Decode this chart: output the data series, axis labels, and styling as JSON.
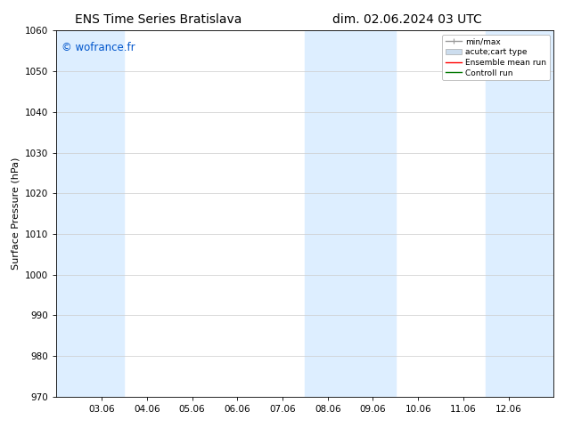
{
  "title_left": "ENS Time Series Bratislava",
  "title_right": "dim. 02.06.2024 03 UTC",
  "ylabel": "Surface Pressure (hPa)",
  "ylim": [
    970,
    1060
  ],
  "yticks": [
    970,
    980,
    990,
    1000,
    1010,
    1020,
    1030,
    1040,
    1050,
    1060
  ],
  "x_tick_labels": [
    "03.06",
    "04.06",
    "05.06",
    "06.06",
    "07.06",
    "08.06",
    "09.06",
    "10.06",
    "11.06",
    "12.06"
  ],
  "x_tick_positions": [
    1,
    2,
    3,
    4,
    5,
    6,
    7,
    8,
    9,
    10
  ],
  "xlim": [
    0,
    11
  ],
  "shaded_bands": [
    {
      "x_start": 0.0,
      "x_end": 1.5,
      "color": "#ddeeff"
    },
    {
      "x_start": 5.5,
      "x_end": 7.5,
      "color": "#ddeeff"
    },
    {
      "x_start": 9.5,
      "x_end": 11.0,
      "color": "#ddeeff"
    }
  ],
  "watermark": "© wofrance.fr",
  "watermark_color": "#0055cc",
  "bg_color": "#ffffff",
  "legend_items": [
    {
      "label": "min/max",
      "color": "#999999",
      "lw": 1.0,
      "style": "errorbar"
    },
    {
      "label": "acute;cart type",
      "color": "#ccddee",
      "lw": 5,
      "style": "bar"
    },
    {
      "label": "Ensemble mean run",
      "color": "#ff0000",
      "lw": 1.0,
      "style": "line"
    },
    {
      "label": "Controll run",
      "color": "#007700",
      "lw": 1.0,
      "style": "line"
    }
  ],
  "grid_color": "#cccccc",
  "title_fontsize": 10,
  "axis_label_fontsize": 8,
  "tick_fontsize": 7.5
}
